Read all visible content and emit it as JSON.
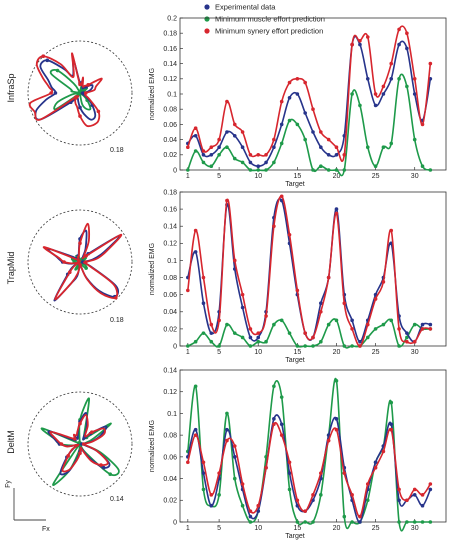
{
  "legend": [
    {
      "label": "Experimental data",
      "color": "#27348b"
    },
    {
      "label": "Minimum muscle effort prediction",
      "color": "#1e9a4a"
    },
    {
      "label": "Minimum synery effort prediction",
      "color": "#d7262e"
    }
  ],
  "colors": {
    "exp": "#27348b",
    "mus": "#1e9a4a",
    "syn": "#d7262e"
  },
  "force_axes": {
    "x_label": "Fx",
    "y_label": "Fy"
  },
  "chart_data": [
    {
      "type": "line",
      "muscle": "InfraSp",
      "scale_label": "0.18",
      "xlabel": "Target",
      "ylabel": "normalized EMG",
      "xlim": [
        0,
        34
      ],
      "ylim": [
        0,
        0.2
      ],
      "xticks": [
        1,
        5,
        10,
        15,
        20,
        25,
        30
      ],
      "yticks": [
        "0",
        "0.02",
        "0.04",
        "0.06",
        "0.08",
        "0.1",
        "0.12",
        "0.14",
        "0.16",
        "0.18",
        "0.2"
      ],
      "grid": false,
      "legend_position": "top",
      "x": [
        1,
        2,
        3,
        4,
        5,
        6,
        7,
        8,
        9,
        10,
        11,
        12,
        13,
        14,
        15,
        16,
        17,
        18,
        19,
        20,
        21,
        22,
        23,
        24,
        25,
        26,
        27,
        28,
        29,
        30,
        31,
        32
      ],
      "series": [
        {
          "name": "Experimental data",
          "values": [
            0.035,
            0.045,
            0.02,
            0.02,
            0.03,
            0.05,
            0.045,
            0.03,
            0.01,
            0.005,
            0.01,
            0.03,
            0.06,
            0.095,
            0.1,
            0.075,
            0.05,
            0.03,
            0.02,
            0.02,
            0.045,
            0.165,
            0.165,
            0.12,
            0.085,
            0.1,
            0.12,
            0.165,
            0.16,
            0.1,
            0.065,
            0.12
          ]
        },
        {
          "name": "Minimum muscle effort prediction",
          "values": [
            0.0,
            0.025,
            0.01,
            0.005,
            0.02,
            0.03,
            0.015,
            0.01,
            0.0,
            0.0,
            0.0,
            0.01,
            0.035,
            0.065,
            0.06,
            0.04,
            0.0,
            0.005,
            0.0,
            0.0,
            0.0,
            0.1,
            0.085,
            0.03,
            0.005,
            0.03,
            0.035,
            0.12,
            0.11,
            0.04,
            0.005,
            0.0
          ]
        },
        {
          "name": "Minimum synery effort prediction",
          "values": [
            0.03,
            0.055,
            0.025,
            0.03,
            0.04,
            0.09,
            0.06,
            0.05,
            0.02,
            0.02,
            0.02,
            0.04,
            0.09,
            0.115,
            0.12,
            0.115,
            0.08,
            0.05,
            0.04,
            0.03,
            0.02,
            0.165,
            0.17,
            0.175,
            0.1,
            0.11,
            0.14,
            0.185,
            0.18,
            0.12,
            0.06,
            0.14
          ]
        }
      ]
    },
    {
      "type": "line",
      "muscle": "TrapMid",
      "scale_label": "0.18",
      "xlabel": "Target",
      "ylabel": "normalized EMG",
      "xlim": [
        0,
        34
      ],
      "ylim": [
        0,
        0.18
      ],
      "xticks": [
        1,
        5,
        10,
        15,
        20,
        25,
        30
      ],
      "yticks": [
        "0",
        "0.02",
        "0.04",
        "0.06",
        "0.08",
        "0.1",
        "0.12",
        "0.14",
        "0.16",
        "0.18"
      ],
      "grid": false,
      "legend_position": "none",
      "x": [
        1,
        2,
        3,
        4,
        5,
        6,
        7,
        8,
        9,
        10,
        11,
        12,
        13,
        14,
        15,
        16,
        17,
        18,
        19,
        20,
        21,
        22,
        23,
        24,
        25,
        26,
        27,
        28,
        29,
        30,
        31,
        32
      ],
      "series": [
        {
          "name": "Experimental data",
          "values": [
            0.08,
            0.11,
            0.05,
            0.015,
            0.04,
            0.165,
            0.09,
            0.045,
            0.01,
            0.01,
            0.04,
            0.15,
            0.17,
            0.12,
            0.06,
            0.015,
            0.01,
            0.05,
            0.08,
            0.16,
            0.06,
            0.03,
            0.005,
            0.03,
            0.06,
            0.08,
            0.12,
            0.035,
            0.015,
            0.005,
            0.025,
            0.025
          ]
        },
        {
          "name": "Minimum muscle effort prediction",
          "values": [
            0.0,
            0.005,
            0.015,
            0.005,
            0.0,
            0.025,
            0.015,
            0.01,
            0.0,
            0.005,
            0.005,
            0.025,
            0.03,
            0.015,
            0.0,
            0.0,
            0.0,
            0.005,
            0.025,
            0.03,
            0.0,
            0.0,
            0.0,
            0.01,
            0.02,
            0.025,
            0.03,
            0.0,
            0.01,
            0.025,
            0.02,
            0.02
          ]
        },
        {
          "name": "Minimum synery effort prediction",
          "values": [
            0.065,
            0.135,
            0.08,
            0.025,
            0.03,
            0.17,
            0.1,
            0.06,
            0.02,
            0.015,
            0.035,
            0.14,
            0.175,
            0.13,
            0.065,
            0.015,
            0.01,
            0.04,
            0.08,
            0.155,
            0.05,
            0.02,
            0.0,
            0.025,
            0.055,
            0.075,
            0.135,
            0.02,
            0.005,
            0.005,
            0.02,
            0.02
          ]
        }
      ]
    },
    {
      "type": "line",
      "muscle": "DeltM",
      "scale_label": "0.14",
      "xlabel": "Target",
      "ylabel": "normalized EMG",
      "xlim": [
        0,
        34
      ],
      "ylim": [
        0,
        0.14
      ],
      "xticks": [
        1,
        5,
        10,
        15,
        20,
        25,
        30
      ],
      "yticks": [
        "0",
        "0.02",
        "0.04",
        "0.06",
        "0.08",
        "0.1",
        "0.12",
        "0.14"
      ],
      "grid": false,
      "legend_position": "none",
      "x": [
        1,
        2,
        3,
        4,
        5,
        6,
        7,
        8,
        9,
        10,
        11,
        12,
        13,
        14,
        15,
        16,
        17,
        18,
        19,
        20,
        21,
        22,
        23,
        24,
        25,
        26,
        27,
        28,
        29,
        30,
        31,
        32
      ],
      "series": [
        {
          "name": "Experimental data",
          "values": [
            0.06,
            0.085,
            0.045,
            0.015,
            0.04,
            0.085,
            0.06,
            0.03,
            0.005,
            0.01,
            0.05,
            0.095,
            0.09,
            0.045,
            0.015,
            0.01,
            0.02,
            0.04,
            0.08,
            0.095,
            0.05,
            0.02,
            0.0,
            0.03,
            0.055,
            0.07,
            0.09,
            0.02,
            0.02,
            0.025,
            0.015,
            0.03
          ]
        },
        {
          "name": "Minimum muscle effort prediction",
          "values": [
            0.065,
            0.125,
            0.03,
            0.015,
            0.025,
            0.1,
            0.04,
            0.015,
            0.0,
            0.01,
            0.06,
            0.125,
            0.115,
            0.03,
            0.0,
            0.0,
            0.0,
            0.025,
            0.08,
            0.13,
            0.005,
            0.0,
            0.0,
            0.02,
            0.055,
            0.07,
            0.11,
            0.0,
            0.0,
            0.0,
            0.0,
            0.0
          ]
        },
        {
          "name": "Minimum synery effort prediction",
          "values": [
            0.055,
            0.08,
            0.055,
            0.025,
            0.045,
            0.075,
            0.07,
            0.035,
            0.01,
            0.015,
            0.05,
            0.09,
            0.08,
            0.055,
            0.02,
            0.01,
            0.025,
            0.045,
            0.075,
            0.085,
            0.045,
            0.025,
            0.005,
            0.035,
            0.05,
            0.065,
            0.085,
            0.03,
            0.02,
            0.03,
            0.025,
            0.035
          ]
        }
      ]
    }
  ],
  "polar_data": [
    {
      "muscle": "InfraSp",
      "series": [
        {
          "name": "Experimental data",
          "values": [
            0.035,
            0.045,
            0.02,
            0.02,
            0.03,
            0.05,
            0.045,
            0.03,
            0.01,
            0.005,
            0.01,
            0.03,
            0.06,
            0.095,
            0.1,
            0.075,
            0.05,
            0.03,
            0.02,
            0.02,
            0.045,
            0.165,
            0.165,
            0.12,
            0.085,
            0.1,
            0.12,
            0.165,
            0.16,
            0.1,
            0.065,
            0.12
          ]
        },
        {
          "name": "Minimum muscle effort prediction",
          "values": [
            0.0,
            0.025,
            0.01,
            0.005,
            0.02,
            0.03,
            0.015,
            0.01,
            0.0,
            0.0,
            0.0,
            0.01,
            0.035,
            0.065,
            0.06,
            0.04,
            0.0,
            0.005,
            0.0,
            0.0,
            0.0,
            0.1,
            0.085,
            0.03,
            0.005,
            0.03,
            0.035,
            0.12,
            0.11,
            0.04,
            0.005,
            0.0
          ]
        },
        {
          "name": "Minimum synery effort prediction",
          "values": [
            0.03,
            0.055,
            0.025,
            0.03,
            0.04,
            0.09,
            0.06,
            0.05,
            0.02,
            0.02,
            0.02,
            0.04,
            0.09,
            0.115,
            0.12,
            0.115,
            0.08,
            0.05,
            0.04,
            0.03,
            0.02,
            0.165,
            0.17,
            0.175,
            0.1,
            0.11,
            0.14,
            0.185,
            0.18,
            0.12,
            0.06,
            0.14
          ]
        }
      ]
    }
  ]
}
